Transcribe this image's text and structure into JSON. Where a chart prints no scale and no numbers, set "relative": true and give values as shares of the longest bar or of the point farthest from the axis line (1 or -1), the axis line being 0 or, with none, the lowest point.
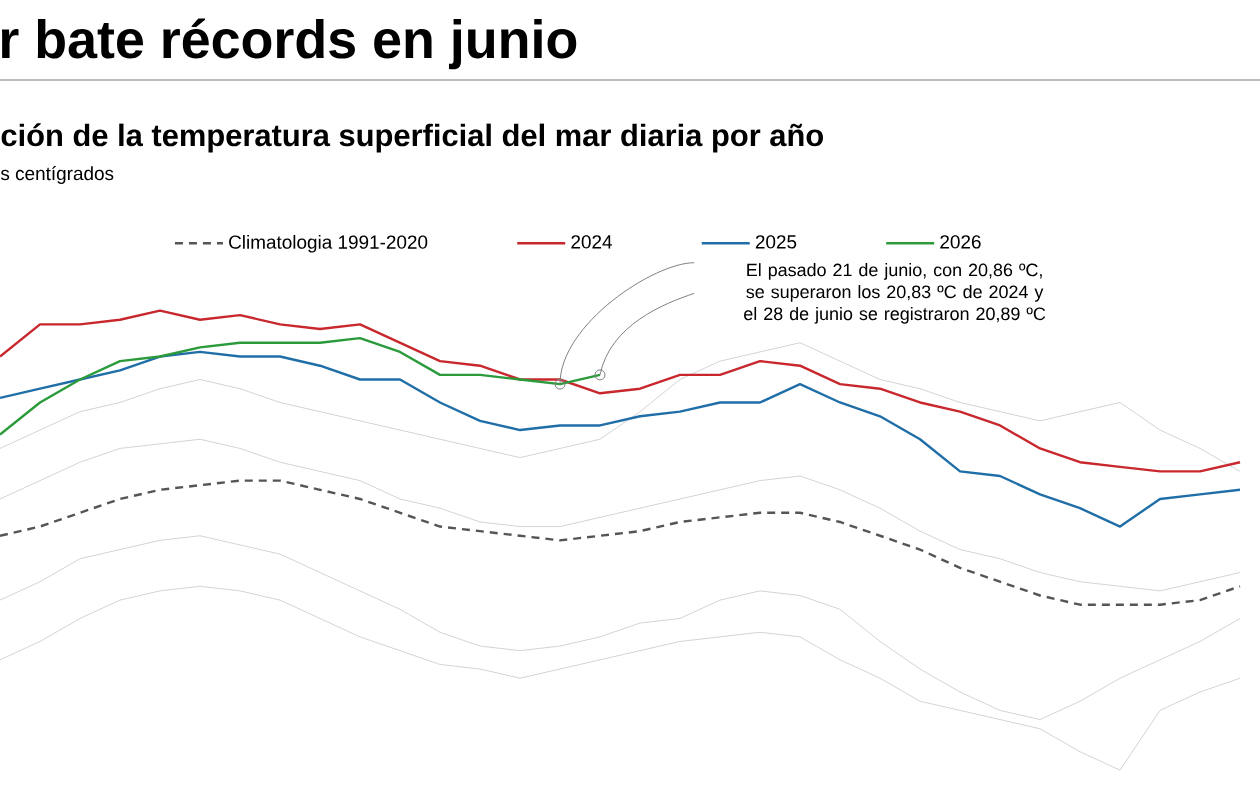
{
  "chart_data": {
    "type": "line",
    "title": "r bate récords en junio",
    "subtitle": "ción de la temperatura superficial del mar diaria por año",
    "annotations": [
      "s centígrados",
      "El pasado 21 de junio, con 20,86 ºC, se superaron los 20,83 ºC de 2024 y el 28 de junio se registraron 20,89 ºC"
    ],
    "relative": true,
    "legend": "top",
    "categories": [
      null,
      null,
      null,
      null,
      null,
      null,
      null,
      null,
      null,
      null,
      null,
      null,
      null,
      null,
      null,
      null,
      null,
      null,
      null,
      null,
      null,
      null,
      null,
      null,
      null,
      null,
      null,
      null,
      null,
      null,
      null,
      null
    ],
    "series": [
      {
        "color": "#d4d4d4",
        "values": [
          0.7,
          0.74,
          0.78,
          0.8,
          0.83,
          0.85,
          0.83,
          0.8,
          0.78,
          0.76,
          0.74,
          0.72,
          0.7,
          0.68,
          0.7,
          0.72,
          0.78,
          0.85,
          0.89,
          0.91,
          0.93,
          0.89,
          0.85,
          0.83,
          0.8,
          0.78,
          0.76,
          0.78,
          0.8,
          0.74,
          0.7,
          0.65
        ]
      },
      {
        "color": "#d4d4d4",
        "values": [
          0.59,
          0.63,
          0.67,
          0.7,
          0.71,
          0.72,
          0.7,
          0.67,
          0.65,
          0.63,
          0.59,
          0.57,
          0.54,
          0.53,
          0.53,
          0.55,
          0.57,
          0.59,
          0.61,
          0.63,
          0.64,
          0.61,
          0.57,
          0.52,
          0.48,
          0.46,
          0.43,
          0.41,
          0.4,
          0.39,
          0.41,
          0.43
        ]
      },
      {
        "color": "#d4d4d4",
        "values": [
          0.37,
          0.41,
          0.46,
          0.48,
          0.5,
          0.51,
          0.49,
          0.47,
          0.43,
          0.39,
          0.35,
          0.3,
          0.27,
          0.26,
          0.27,
          0.29,
          0.32,
          0.33,
          0.37,
          0.39,
          0.38,
          0.35,
          0.28,
          0.22,
          0.17,
          0.13,
          0.11,
          0.15,
          0.2,
          0.24,
          0.28,
          0.33
        ]
      },
      {
        "color": "#d4d4d4",
        "values": [
          0.24,
          0.28,
          0.33,
          0.37,
          0.39,
          0.4,
          0.39,
          0.37,
          0.33,
          0.29,
          0.26,
          0.23,
          0.22,
          0.2,
          0.22,
          0.24,
          0.26,
          0.28,
          0.29,
          0.3,
          0.29,
          0.24,
          0.2,
          0.15,
          0.13,
          0.11,
          0.09,
          0.04,
          0.0,
          0.13,
          0.17,
          0.2
        ]
      },
      {
        "name": "Climatologia 1991-2020",
        "color": "#555555",
        "line_style": "dashed",
        "values": [
          0.51,
          0.53,
          0.56,
          0.59,
          0.61,
          0.62,
          0.63,
          0.63,
          0.61,
          0.59,
          0.56,
          0.53,
          0.52,
          0.51,
          0.5,
          0.51,
          0.52,
          0.54,
          0.55,
          0.56,
          0.56,
          0.54,
          0.51,
          0.48,
          0.44,
          0.41,
          0.38,
          0.36,
          0.36,
          0.36,
          0.37,
          0.4
        ]
      },
      {
        "name": "2024",
        "color": "#c8282d",
        "values": [
          0.9,
          0.97,
          0.97,
          0.98,
          1.0,
          0.98,
          0.99,
          0.97,
          0.96,
          0.97,
          0.93,
          0.89,
          0.88,
          0.85,
          0.85,
          0.82,
          0.83,
          0.86,
          0.86,
          0.89,
          0.88,
          0.84,
          0.83,
          0.8,
          0.78,
          0.75,
          0.7,
          0.67,
          0.66,
          0.65,
          0.65,
          0.67
        ]
      },
      {
        "name": "2025",
        "color": "#1f6ea8",
        "values": [
          0.81,
          0.83,
          0.85,
          0.87,
          0.9,
          0.91,
          0.9,
          0.9,
          0.88,
          0.85,
          0.85,
          0.8,
          0.76,
          0.74,
          0.75,
          0.75,
          0.77,
          0.78,
          0.8,
          0.8,
          0.84,
          0.8,
          0.77,
          0.72,
          0.65,
          0.64,
          0.6,
          0.57,
          0.53,
          0.59,
          0.6,
          0.61
        ]
      },
      {
        "name": "2026",
        "color": "#2a9a3a",
        "values": [
          0.73,
          0.8,
          0.85,
          0.89,
          0.9,
          0.92,
          0.93,
          0.93,
          0.93,
          0.94,
          0.91,
          0.86,
          0.86,
          0.85,
          0.84,
          0.86,
          null,
          null,
          null,
          null,
          null,
          null,
          null,
          null,
          null,
          null,
          null,
          null,
          null,
          null,
          null,
          null
        ]
      }
    ]
  }
}
